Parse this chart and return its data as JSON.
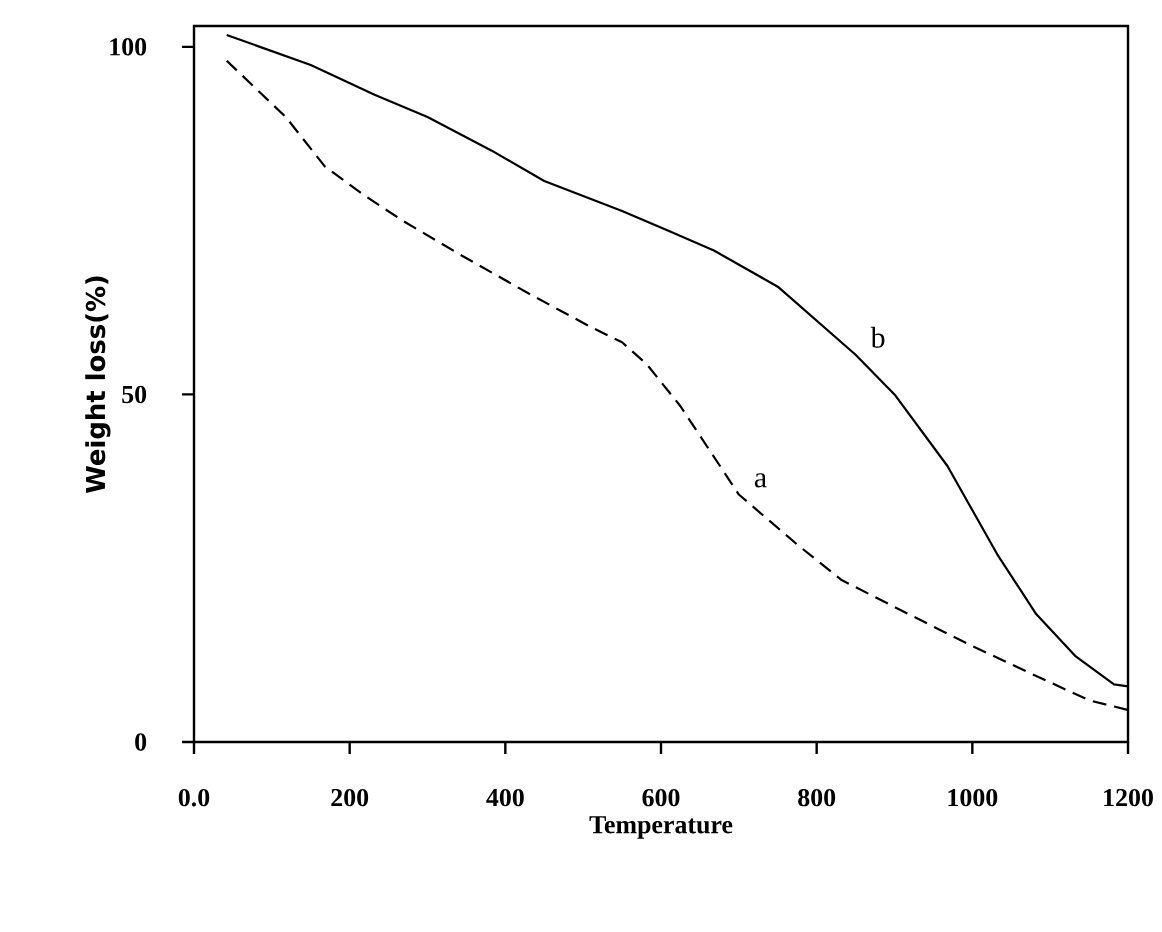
{
  "chart_data": {
    "type": "line",
    "xlabel": "Temperature",
    "ylabel": "Weight loss(%)",
    "xlim": [
      0,
      1200
    ],
    "ylim": [
      0,
      103
    ],
    "xticks": [
      {
        "value": 0,
        "label": "0.0"
      },
      200,
      400,
      600,
      800,
      1000,
      1200
    ],
    "yticks": [
      0,
      50,
      100
    ],
    "grid": false,
    "legend": false,
    "series": [
      {
        "name": "a",
        "color": "#000000",
        "line_style": "dashed",
        "x": [
          42,
          118,
          168,
          218,
          268,
          342,
          432,
          508,
          550,
          582,
          625,
          700,
          775,
          832,
          918,
          1000,
          1082,
          1150,
          1200
        ],
        "values": [
          98.0,
          89.9,
          82.8,
          78.7,
          75.0,
          70.1,
          64.4,
          59.8,
          57.5,
          54.3,
          48.3,
          35.6,
          28.4,
          23.3,
          18.4,
          13.8,
          9.5,
          6.0,
          4.6
        ]
      },
      {
        "name": "b",
        "color": "#000000",
        "line_style": "solid",
        "x": [
          42,
          150,
          232,
          300,
          382,
          450,
          550,
          608,
          668,
          750,
          850,
          900,
          968,
          1032,
          1082,
          1132,
          1182,
          1200
        ],
        "values": [
          101.7,
          97.4,
          93.1,
          89.9,
          85.1,
          80.7,
          76.4,
          73.6,
          70.7,
          65.5,
          55.7,
          50.0,
          39.7,
          27.0,
          18.4,
          12.4,
          8.3,
          8.0
        ]
      }
    ]
  }
}
